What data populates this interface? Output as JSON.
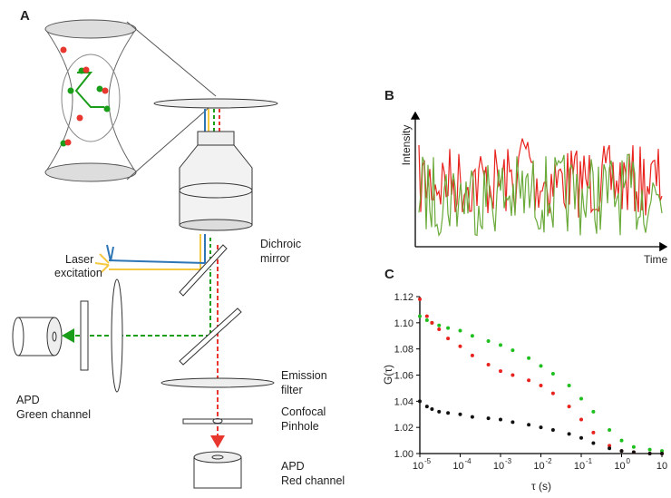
{
  "panel_a": {
    "label": "A",
    "laser": [
      "Laser",
      "excitation"
    ],
    "dichroic": [
      "Dichroic",
      "mirror"
    ],
    "apd_green": [
      "APD",
      "Green channel"
    ],
    "emission": [
      "Emission",
      "filter"
    ],
    "pinhole": [
      "Confocal",
      "Pinhole"
    ],
    "apd_red": [
      "APD",
      "Red channel"
    ]
  },
  "panel_b": {
    "label": "B",
    "y_label": "Intensity",
    "x_label": "Time"
  },
  "panel_c": {
    "label": "C"
  },
  "chart_data": {
    "type": "scatter",
    "y_label": "G(τ)",
    "x_label": "τ (s)",
    "x_log": true,
    "xlim": [
      1e-05,
      10
    ],
    "ylim": [
      1.0,
      1.12
    ],
    "xticks": [
      {
        "value": 1e-05,
        "label": "10",
        "exponent": "-5"
      },
      {
        "value": 0.0001,
        "label": "10",
        "exponent": "-4"
      },
      {
        "value": 0.001,
        "label": "10",
        "exponent": "-3"
      },
      {
        "value": 0.01,
        "label": "10",
        "exponent": "-2"
      },
      {
        "value": 0.1,
        "label": "10",
        "exponent": "-1"
      },
      {
        "value": 1,
        "label": "10",
        "exponent": "0"
      },
      10
    ],
    "yticks": [
      {
        "value": 1,
        "label": "1.00"
      },
      1.02,
      1.04,
      1.06,
      1.08,
      {
        "value": 1.1,
        "label": "1.10"
      },
      1.12
    ],
    "x": [
      1e-05,
      1.5e-05,
      2e-05,
      3e-05,
      5e-05,
      0.0001,
      0.0002,
      0.0005,
      0.001,
      0.002,
      0.005,
      0.01,
      0.02,
      0.05,
      0.1,
      0.2,
      0.5,
      1,
      2,
      5,
      10
    ],
    "series": [
      {
        "color": "#1fbf1f",
        "values": [
          1.105,
          1.102,
          1.1,
          1.098,
          1.096,
          1.094,
          1.09,
          1.086,
          1.083,
          1.079,
          1.073,
          1.067,
          1.061,
          1.052,
          1.042,
          1.032,
          1.018,
          1.01,
          1.005,
          1.003,
          1.002
        ]
      },
      {
        "color": "#e8231e",
        "values": [
          1.118,
          1.105,
          1.1,
          1.095,
          1.088,
          1.082,
          1.075,
          1.068,
          1.063,
          1.06,
          1.056,
          1.052,
          1.046,
          1.036,
          1.026,
          1.016,
          1.006,
          1.002,
          1.001,
          1.0,
          1.0
        ]
      },
      {
        "color": "#111111",
        "values": [
          1.04,
          1.036,
          1.034,
          1.032,
          1.031,
          1.03,
          1.028,
          1.027,
          1.026,
          1.024,
          1.022,
          1.02,
          1.018,
          1.015,
          1.012,
          1.008,
          1.004,
          1.002,
          1.001,
          1.0,
          1.0
        ]
      }
    ]
  }
}
